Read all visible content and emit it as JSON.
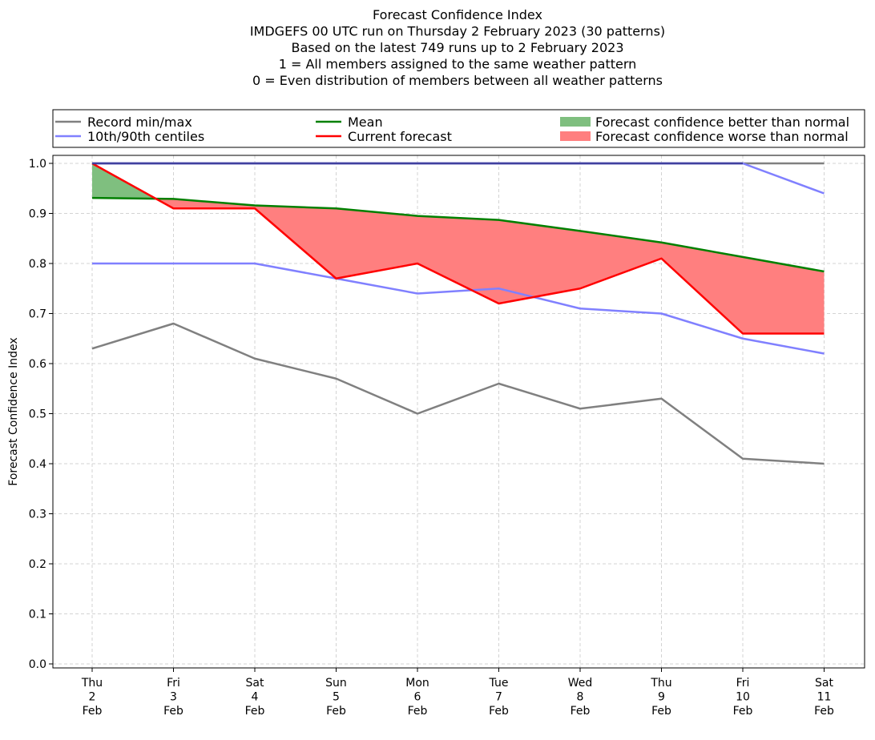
{
  "chart_data": {
    "type": "line",
    "title_lines": [
      "Forecast Confidence Index",
      "IMDGEFS 00 UTC run on Thursday 2 February 2023 (30 patterns)",
      "Based on the latest 749 runs up to 2 February 2023",
      "1 = All members assigned to the same weather pattern",
      "0 = Even distribution of members between all weather patterns"
    ],
    "ylabel": "Forecast Confidence Index",
    "ylim": [
      0,
      1.0
    ],
    "yticks": [
      "0.0",
      "0.1",
      "0.2",
      "0.3",
      "0.4",
      "0.5",
      "0.6",
      "0.7",
      "0.8",
      "0.9",
      "1.0"
    ],
    "grid": true,
    "legend_position": "top, spanning full width",
    "categories": [
      [
        "Thu",
        "2",
        "Feb"
      ],
      [
        "Fri",
        "3",
        "Feb"
      ],
      [
        "Sat",
        "4",
        "Feb"
      ],
      [
        "Sun",
        "5",
        "Feb"
      ],
      [
        "Mon",
        "6",
        "Feb"
      ],
      [
        "Tue",
        "7",
        "Feb"
      ],
      [
        "Wed",
        "8",
        "Feb"
      ],
      [
        "Thu",
        "9",
        "Feb"
      ],
      [
        "Fri",
        "10",
        "Feb"
      ],
      [
        "Sat",
        "11",
        "Feb"
      ]
    ],
    "series": [
      {
        "name": "Record min/max",
        "color": "#808080",
        "role": "record_min",
        "values": [
          0.63,
          0.68,
          0.61,
          0.57,
          0.5,
          0.56,
          0.51,
          0.53,
          0.41,
          0.4
        ]
      },
      {
        "name": "Record min/max",
        "color": "#808080",
        "role": "record_max",
        "values": [
          1.0,
          1.0,
          1.0,
          1.0,
          1.0,
          1.0,
          1.0,
          1.0,
          1.0,
          1.0
        ]
      },
      {
        "name": "10th/90th centiles",
        "color": "#8080ff",
        "role": "p10",
        "values": [
          0.8,
          0.8,
          0.8,
          0.77,
          0.74,
          0.75,
          0.71,
          0.7,
          0.65,
          0.62
        ]
      },
      {
        "name": "10th/90th centiles",
        "color": "#8080ff",
        "role": "p90",
        "values": [
          1.0,
          1.0,
          1.0,
          1.0,
          1.0,
          1.0,
          1.0,
          1.0,
          1.0,
          0.94
        ]
      },
      {
        "name": "Mean",
        "color": "#008000",
        "role": "mean",
        "values": [
          0.931,
          0.929,
          0.916,
          0.91,
          0.895,
          0.887,
          0.865,
          0.842,
          0.813,
          0.784
        ]
      },
      {
        "name": "Current forecast",
        "color": "#ff0000",
        "role": "current",
        "values": [
          1.0,
          0.91,
          0.91,
          0.77,
          0.8,
          0.72,
          0.75,
          0.81,
          0.66,
          0.66
        ]
      }
    ],
    "fills": [
      {
        "name": "Forecast confidence better than normal",
        "color": "#7fbf7f"
      },
      {
        "name": "Forecast confidence worse than normal",
        "color": "#ff7f7f"
      }
    ],
    "legend": [
      {
        "label": "Record min/max",
        "kind": "line",
        "color": "#808080"
      },
      {
        "label": "Mean",
        "kind": "line",
        "color": "#008000"
      },
      {
        "label": "Forecast confidence better than normal",
        "kind": "patch",
        "color": "#7fbf7f"
      },
      {
        "label": "10th/90th centiles",
        "kind": "line",
        "color": "#8080ff"
      },
      {
        "label": "Current forecast",
        "kind": "line",
        "color": "#ff0000"
      },
      {
        "label": "Forecast confidence worse than normal",
        "kind": "patch",
        "color": "#ff7f7f"
      }
    ]
  }
}
